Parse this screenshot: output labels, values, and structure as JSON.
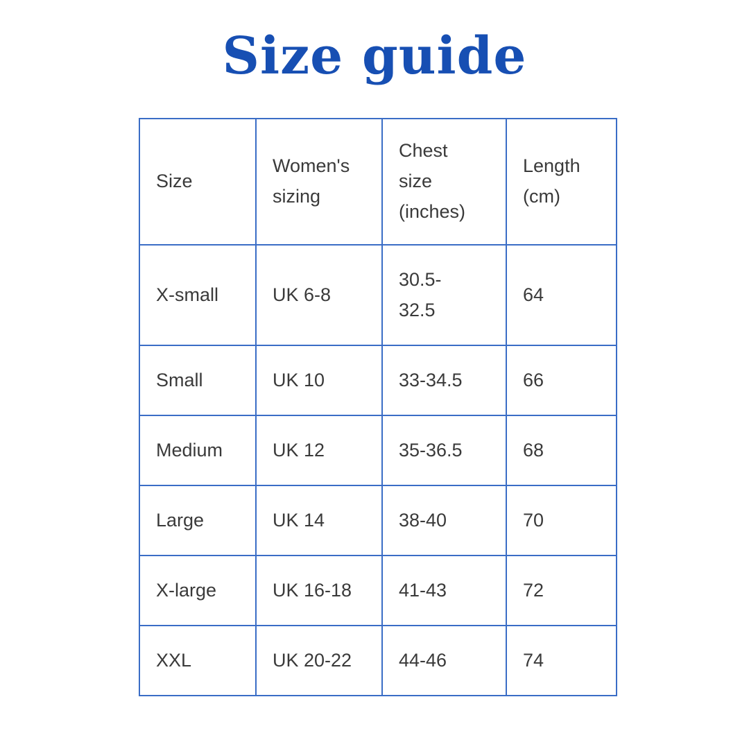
{
  "page": {
    "title": "Size guide"
  },
  "colors": {
    "title_blue": "#174fb3",
    "border_blue": "#3a6dc6",
    "cell_text": "#3a3a3a",
    "background": "#ffffff"
  },
  "table": {
    "headers": [
      "Size",
      "Women's\nsizing",
      "Chest\nsize\n(inches)",
      "Length\n(cm)"
    ],
    "rows": [
      {
        "size": "X-small",
        "womens_sizing": "UK 6-8",
        "chest_inches": "30.5-\n32.5",
        "length_cm": "64"
      },
      {
        "size": "Small",
        "womens_sizing": "UK 10",
        "chest_inches": "33-34.5",
        "length_cm": "66"
      },
      {
        "size": "Medium",
        "womens_sizing": "UK 12",
        "chest_inches": "35-36.5",
        "length_cm": "68"
      },
      {
        "size": "Large",
        "womens_sizing": "UK 14",
        "chest_inches": "38-40",
        "length_cm": "70"
      },
      {
        "size": "X-large",
        "womens_sizing": "UK 16-18",
        "chest_inches": "41-43",
        "length_cm": "72"
      },
      {
        "size": "XXL",
        "womens_sizing": "UK 20-22",
        "chest_inches": "44-46",
        "length_cm": "74"
      }
    ]
  }
}
